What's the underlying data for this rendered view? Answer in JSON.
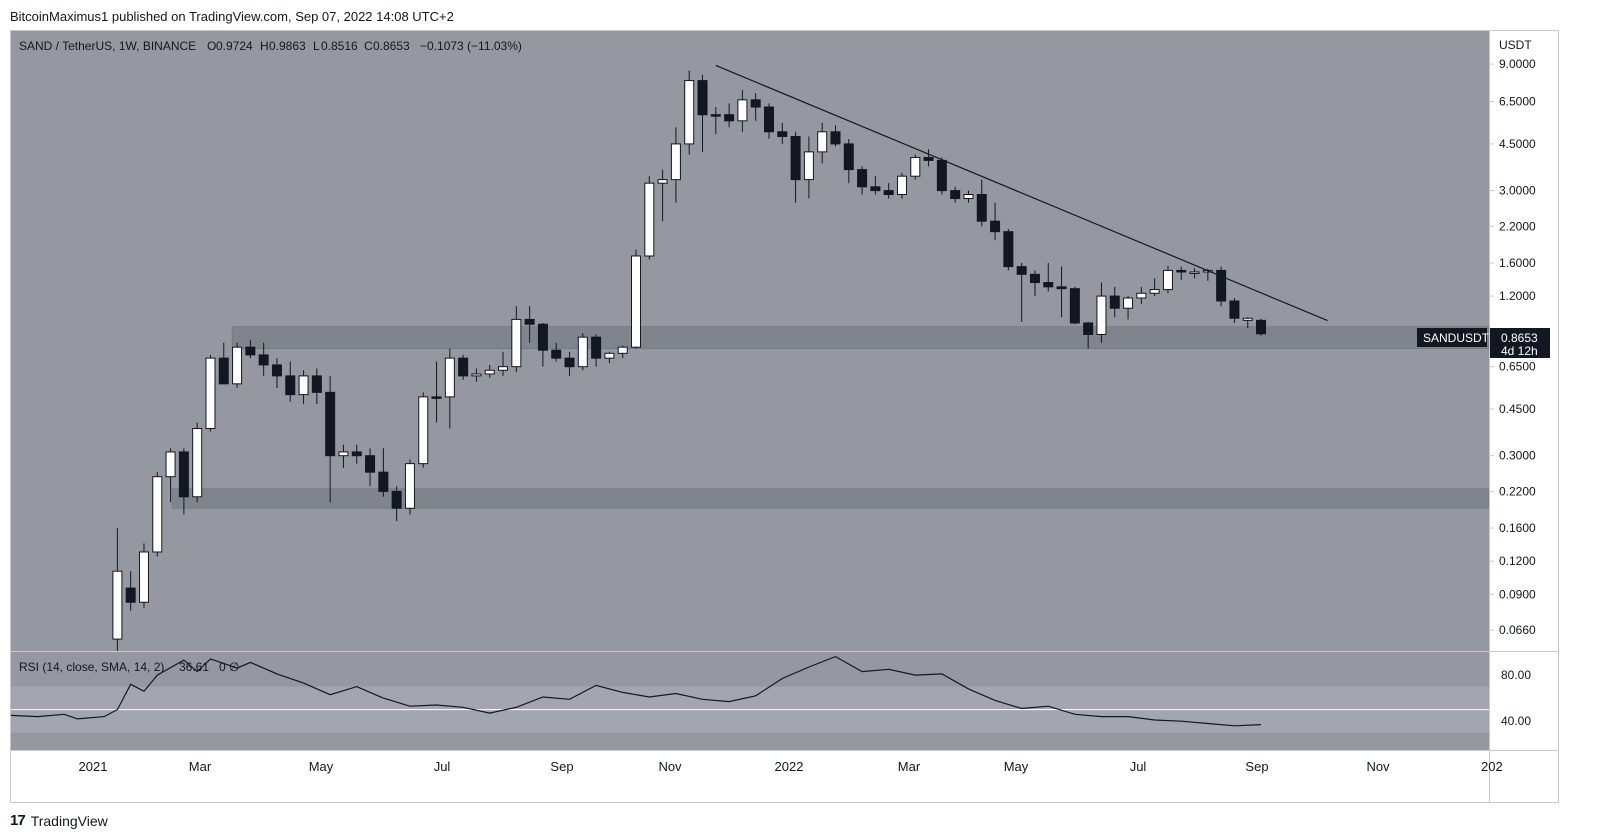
{
  "header": {
    "published": "BitcoinMaximus1 published on TradingView.com, Sep 07, 2022 14:08 UTC+2"
  },
  "footer": {
    "brand": "TradingView"
  },
  "legend": {
    "symbol": "SAND / TetherUS, 1W, BINANCE",
    "open_label": "O",
    "open": "0.9724",
    "high_label": "H",
    "high": "0.9863",
    "low_label": "L",
    "low": "0.8516",
    "close_label": "C",
    "close": "0.8653",
    "change": "−0.1073 (−11.03%)"
  },
  "rsi_legend": {
    "label": "RSI (14, close, SMA, 14, 2)",
    "value": "36.61",
    "extra": "0  ∅"
  },
  "price_axis": {
    "currency": "USDT",
    "ticks": [
      "9.0000",
      "6.5000",
      "4.5000",
      "3.0000",
      "2.2000",
      "1.6000",
      "1.2000",
      "0.6500",
      "0.4500",
      "0.3000",
      "0.2200",
      "0.1600",
      "0.1200",
      "0.0900",
      "0.0660"
    ]
  },
  "rsi_axis": {
    "ticks": [
      "80.00",
      "40.00"
    ]
  },
  "time_axis": {
    "ticks": [
      "2021",
      "Mar",
      "May",
      "Jul",
      "Sep",
      "Nov",
      "2022",
      "Mar",
      "May",
      "Jul",
      "Sep",
      "Nov",
      "202"
    ]
  },
  "price_tag": {
    "symbol": "SANDUSDT",
    "price": "0.8653",
    "countdown": "4d 12h"
  },
  "colors": {
    "background": "#9598a1",
    "rsi_band": "#a3a6ae",
    "zone": "#7a7d85",
    "up_body": "#ffffff",
    "down_body": "#131722",
    "wick": "#131722"
  },
  "chart_data": {
    "type": "candlestick",
    "title": "SAND / TetherUS, 1W, BINANCE",
    "y_scale": "log",
    "ylim": [
      0.055,
      12
    ],
    "x_range": [
      "2020-11-02",
      "2022-12-20"
    ],
    "candles": [
      [
        "2020-12-28",
        0.061,
        0.16,
        0.055,
        0.11,
        "up"
      ],
      [
        "2021-01-04",
        0.095,
        0.11,
        0.078,
        0.084,
        "down"
      ],
      [
        "2021-01-11",
        0.084,
        0.14,
        0.08,
        0.13,
        "up"
      ],
      [
        "2021-01-18",
        0.13,
        0.26,
        0.125,
        0.25,
        "up"
      ],
      [
        "2021-01-25",
        0.25,
        0.32,
        0.2,
        0.31,
        "up"
      ],
      [
        "2021-02-01",
        0.31,
        0.32,
        0.18,
        0.21,
        "down"
      ],
      [
        "2021-02-08",
        0.21,
        0.4,
        0.2,
        0.38,
        "up"
      ],
      [
        "2021-02-15",
        0.38,
        0.72,
        0.37,
        0.7,
        "up"
      ],
      [
        "2021-02-22",
        0.7,
        0.8,
        0.56,
        0.56,
        "down"
      ],
      [
        "2021-03-01",
        0.56,
        0.8,
        0.54,
        0.77,
        "up"
      ],
      [
        "2021-03-08",
        0.77,
        0.82,
        0.7,
        0.72,
        "down"
      ],
      [
        "2021-03-15",
        0.72,
        0.8,
        0.6,
        0.66,
        "down"
      ],
      [
        "2021-03-22",
        0.66,
        0.7,
        0.54,
        0.6,
        "down"
      ],
      [
        "2021-03-29",
        0.6,
        0.68,
        0.48,
        0.51,
        "down"
      ],
      [
        "2021-04-05",
        0.51,
        0.63,
        0.47,
        0.6,
        "up"
      ],
      [
        "2021-04-12",
        0.6,
        0.64,
        0.47,
        0.52,
        "down"
      ],
      [
        "2021-04-19",
        0.52,
        0.6,
        0.2,
        0.3,
        "down"
      ],
      [
        "2021-04-26",
        0.3,
        0.33,
        0.27,
        0.31,
        "up"
      ],
      [
        "2021-05-03",
        0.31,
        0.33,
        0.28,
        0.3,
        "down"
      ],
      [
        "2021-05-10",
        0.3,
        0.32,
        0.23,
        0.26,
        "down"
      ],
      [
        "2021-05-17",
        0.26,
        0.32,
        0.21,
        0.22,
        "down"
      ],
      [
        "2021-05-24",
        0.22,
        0.23,
        0.17,
        0.19,
        "down"
      ],
      [
        "2021-05-31",
        0.19,
        0.29,
        0.18,
        0.28,
        "up"
      ],
      [
        "2021-06-07",
        0.28,
        0.52,
        0.27,
        0.5,
        "up"
      ],
      [
        "2021-06-14",
        0.5,
        0.68,
        0.4,
        0.5,
        "down"
      ],
      [
        "2021-06-21",
        0.5,
        0.76,
        0.38,
        0.7,
        "up"
      ],
      [
        "2021-06-28",
        0.7,
        0.72,
        0.58,
        0.6,
        "down"
      ],
      [
        "2021-07-05",
        0.6,
        0.64,
        0.57,
        0.61,
        "up"
      ],
      [
        "2021-07-12",
        0.61,
        0.66,
        0.59,
        0.63,
        "up"
      ],
      [
        "2021-07-19",
        0.63,
        0.74,
        0.6,
        0.65,
        "up"
      ],
      [
        "2021-07-26",
        0.65,
        1.1,
        0.62,
        0.98,
        "up"
      ],
      [
        "2021-08-02",
        0.98,
        1.1,
        0.8,
        0.94,
        "down"
      ],
      [
        "2021-08-09",
        0.94,
        0.95,
        0.65,
        0.75,
        "down"
      ],
      [
        "2021-08-16",
        0.75,
        0.8,
        0.68,
        0.7,
        "down"
      ],
      [
        "2021-08-23",
        0.7,
        0.74,
        0.6,
        0.65,
        "down"
      ],
      [
        "2021-08-30",
        0.65,
        0.87,
        0.63,
        0.84,
        "up"
      ],
      [
        "2021-09-06",
        0.84,
        0.86,
        0.65,
        0.7,
        "down"
      ],
      [
        "2021-09-13",
        0.7,
        0.74,
        0.67,
        0.73,
        "up"
      ],
      [
        "2021-09-20",
        0.73,
        0.78,
        0.7,
        0.77,
        "up"
      ],
      [
        "2021-09-27",
        0.77,
        1.8,
        0.76,
        1.7,
        "up"
      ],
      [
        "2021-10-04",
        1.7,
        3.4,
        1.65,
        3.2,
        "up"
      ],
      [
        "2021-10-11",
        3.2,
        3.6,
        2.3,
        3.3,
        "up"
      ],
      [
        "2021-10-18",
        3.3,
        5.2,
        2.7,
        4.5,
        "up"
      ],
      [
        "2021-10-25",
        4.5,
        8.5,
        4.1,
        7.8,
        "up"
      ],
      [
        "2021-11-01",
        7.8,
        8.2,
        4.2,
        5.8,
        "down"
      ],
      [
        "2021-11-08",
        5.8,
        6.2,
        4.9,
        5.8,
        "down"
      ],
      [
        "2021-11-15",
        5.8,
        6.4,
        5.2,
        5.5,
        "down"
      ],
      [
        "2021-11-22",
        5.5,
        7.2,
        5.0,
        6.6,
        "up"
      ],
      [
        "2021-11-29",
        6.6,
        7.0,
        5.5,
        6.2,
        "down"
      ],
      [
        "2021-12-06",
        6.2,
        6.4,
        4.7,
        5.0,
        "down"
      ],
      [
        "2021-12-13",
        5.0,
        5.4,
        4.5,
        4.8,
        "down"
      ],
      [
        "2021-12-20",
        4.8,
        5.0,
        2.7,
        3.3,
        "down"
      ],
      [
        "2021-12-27",
        3.3,
        4.8,
        2.8,
        4.2,
        "up"
      ],
      [
        "2022-01-03",
        4.2,
        5.4,
        3.8,
        5.0,
        "up"
      ],
      [
        "2022-01-10",
        5.0,
        5.3,
        4.4,
        4.5,
        "down"
      ],
      [
        "2022-01-17",
        4.5,
        4.7,
        3.2,
        3.6,
        "down"
      ],
      [
        "2022-01-24",
        3.6,
        3.7,
        2.9,
        3.1,
        "down"
      ],
      [
        "2022-01-31",
        3.1,
        3.4,
        2.9,
        3.0,
        "down"
      ],
      [
        "2022-02-07",
        3.0,
        3.2,
        2.8,
        2.9,
        "down"
      ],
      [
        "2022-02-14",
        2.9,
        3.5,
        2.8,
        3.4,
        "up"
      ],
      [
        "2022-02-21",
        3.4,
        4.1,
        3.3,
        4.0,
        "up"
      ],
      [
        "2022-02-28",
        4.0,
        4.3,
        3.7,
        3.9,
        "down"
      ],
      [
        "2022-03-07",
        3.9,
        4.0,
        2.9,
        3.0,
        "down"
      ],
      [
        "2022-03-14",
        3.0,
        3.1,
        2.7,
        2.8,
        "down"
      ],
      [
        "2022-03-21",
        2.8,
        3.0,
        2.7,
        2.9,
        "up"
      ],
      [
        "2022-03-28",
        2.9,
        3.3,
        2.2,
        2.3,
        "down"
      ],
      [
        "2022-04-04",
        2.3,
        2.7,
        1.95,
        2.1,
        "down"
      ],
      [
        "2022-04-11",
        2.1,
        2.15,
        1.5,
        1.55,
        "down"
      ],
      [
        "2022-04-18",
        1.55,
        1.6,
        0.96,
        1.45,
        "down"
      ],
      [
        "2022-04-25",
        1.45,
        1.5,
        1.2,
        1.35,
        "down"
      ],
      [
        "2022-05-02",
        1.35,
        1.6,
        1.25,
        1.3,
        "down"
      ],
      [
        "2022-05-09",
        1.3,
        1.55,
        1.0,
        1.28,
        "down"
      ],
      [
        "2022-05-16",
        1.28,
        1.3,
        0.94,
        0.95,
        "down"
      ],
      [
        "2022-05-23",
        0.95,
        0.96,
        0.76,
        0.86,
        "down"
      ],
      [
        "2022-05-30",
        0.86,
        1.35,
        0.8,
        1.2,
        "up"
      ],
      [
        "2022-06-06",
        1.2,
        1.3,
        1.0,
        1.08,
        "down"
      ],
      [
        "2022-06-13",
        1.08,
        1.2,
        0.98,
        1.18,
        "up"
      ],
      [
        "2022-06-20",
        1.18,
        1.3,
        1.12,
        1.23,
        "up"
      ],
      [
        "2022-06-27",
        1.23,
        1.4,
        1.2,
        1.27,
        "up"
      ],
      [
        "2022-07-04",
        1.27,
        1.56,
        1.23,
        1.5,
        "up"
      ],
      [
        "2022-07-11",
        1.5,
        1.55,
        1.38,
        1.48,
        "down"
      ],
      [
        "2022-07-18",
        1.48,
        1.53,
        1.4,
        1.48,
        "up"
      ],
      [
        "2022-07-25",
        1.48,
        1.52,
        1.37,
        1.5,
        "up"
      ],
      [
        "2022-08-01",
        1.5,
        1.55,
        1.1,
        1.15,
        "down"
      ],
      [
        "2022-08-08",
        1.15,
        1.18,
        0.95,
        0.99,
        "down"
      ],
      [
        "2022-08-15",
        0.99,
        1.0,
        0.91,
        0.972,
        "up"
      ],
      [
        "2022-08-22",
        0.972,
        0.986,
        0.852,
        0.865,
        "down"
      ]
    ],
    "support_zones": [
      [
        0.76,
        0.92
      ],
      [
        0.19,
        0.225
      ]
    ],
    "trendline": [
      [
        "2021-11-08",
        8.9
      ],
      [
        "2022-09-26",
        0.97
      ]
    ],
    "rsi": {
      "ylim": [
        15,
        100
      ],
      "band": [
        30,
        70
      ],
      "midline": 50,
      "series": [
        [
          "2020-11-02",
          45
        ],
        [
          "2020-11-16",
          44
        ],
        [
          "2020-11-30",
          46
        ],
        [
          "2020-12-07",
          42
        ],
        [
          "2020-12-21",
          44
        ],
        [
          "2020-12-28",
          50
        ],
        [
          "2021-01-04",
          72
        ],
        [
          "2021-01-11",
          66
        ],
        [
          "2021-01-18",
          80
        ],
        [
          "2021-02-01",
          93
        ],
        [
          "2021-02-08",
          83
        ],
        [
          "2021-02-15",
          94
        ],
        [
          "2021-03-01",
          86
        ],
        [
          "2021-03-08",
          91
        ],
        [
          "2021-03-22",
          81
        ],
        [
          "2021-04-05",
          73
        ],
        [
          "2021-04-19",
          63
        ],
        [
          "2021-05-03",
          70
        ],
        [
          "2021-05-17",
          60
        ],
        [
          "2021-05-31",
          53
        ],
        [
          "2021-06-14",
          54
        ],
        [
          "2021-06-28",
          52
        ],
        [
          "2021-07-12",
          47
        ],
        [
          "2021-07-26",
          52
        ],
        [
          "2021-08-09",
          61
        ],
        [
          "2021-08-23",
          59
        ],
        [
          "2021-09-06",
          71
        ],
        [
          "2021-09-20",
          65
        ],
        [
          "2021-10-04",
          61
        ],
        [
          "2021-10-18",
          64
        ],
        [
          "2021-11-01",
          59
        ],
        [
          "2021-11-15",
          57
        ],
        [
          "2021-11-29",
          62
        ],
        [
          "2021-12-13",
          77
        ],
        [
          "2021-12-27",
          87
        ],
        [
          "2022-01-10",
          96
        ],
        [
          "2022-01-24",
          83
        ],
        [
          "2022-02-07",
          85
        ],
        [
          "2022-02-21",
          80
        ],
        [
          "2022-03-07",
          81
        ],
        [
          "2022-03-21",
          68
        ],
        [
          "2022-04-04",
          58
        ],
        [
          "2022-04-18",
          51
        ],
        [
          "2022-05-02",
          53
        ],
        [
          "2022-05-16",
          46
        ],
        [
          "2022-05-30",
          44
        ],
        [
          "2022-06-13",
          44
        ],
        [
          "2022-06-27",
          41
        ],
        [
          "2022-07-11",
          40
        ],
        [
          "2022-07-25",
          38
        ],
        [
          "2022-08-08",
          36
        ],
        [
          "2022-08-22",
          37
        ]
      ]
    }
  }
}
